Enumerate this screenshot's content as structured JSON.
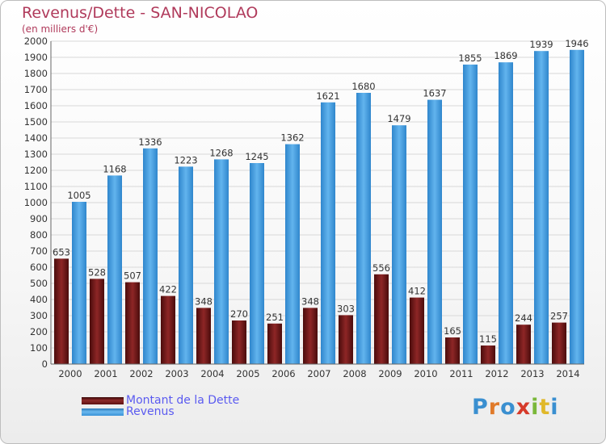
{
  "page": {
    "title": "Revenus/Dette - SAN-NICOLAO",
    "subtitle": "(en milliers d'€)"
  },
  "chart_data": {
    "type": "bar",
    "title": "Revenus/Dette - SAN-NICOLAO",
    "subtitle": "(en milliers d'€)",
    "xlabel": "",
    "ylabel": "",
    "categories": [
      "2000",
      "2001",
      "2002",
      "2003",
      "2004",
      "2005",
      "2006",
      "2007",
      "2008",
      "2009",
      "2010",
      "2011",
      "2012",
      "2013",
      "2014"
    ],
    "series": [
      {
        "name": "Montant de la Dette",
        "color": "#6b1212",
        "values": [
          653,
          528,
          507,
          422,
          348,
          270,
          251,
          348,
          303,
          556,
          412,
          165,
          115,
          244,
          257
        ]
      },
      {
        "name": "Revenus",
        "color": "#3a92d8",
        "values": [
          1005,
          1168,
          1336,
          1223,
          1268,
          1245,
          1362,
          1621,
          1680,
          1479,
          1637,
          1855,
          1869,
          1939,
          1946
        ]
      }
    ],
    "ylim": [
      0,
      2000
    ],
    "ytick_step": 100,
    "grid": true,
    "legend_position": "bottom-left"
  },
  "legend": {
    "items": [
      {
        "label": "Montant de la Dette",
        "color": "#6b1212"
      },
      {
        "label": "Revenus",
        "color": "#3a92d8"
      }
    ]
  },
  "logo": {
    "text": "Proxiti",
    "letter_colors": [
      "#3a8fd0",
      "#e07a2a",
      "#3a8fd0",
      "#d63a2a",
      "#7ab83a",
      "#e0b82a",
      "#3a8fd0"
    ]
  }
}
